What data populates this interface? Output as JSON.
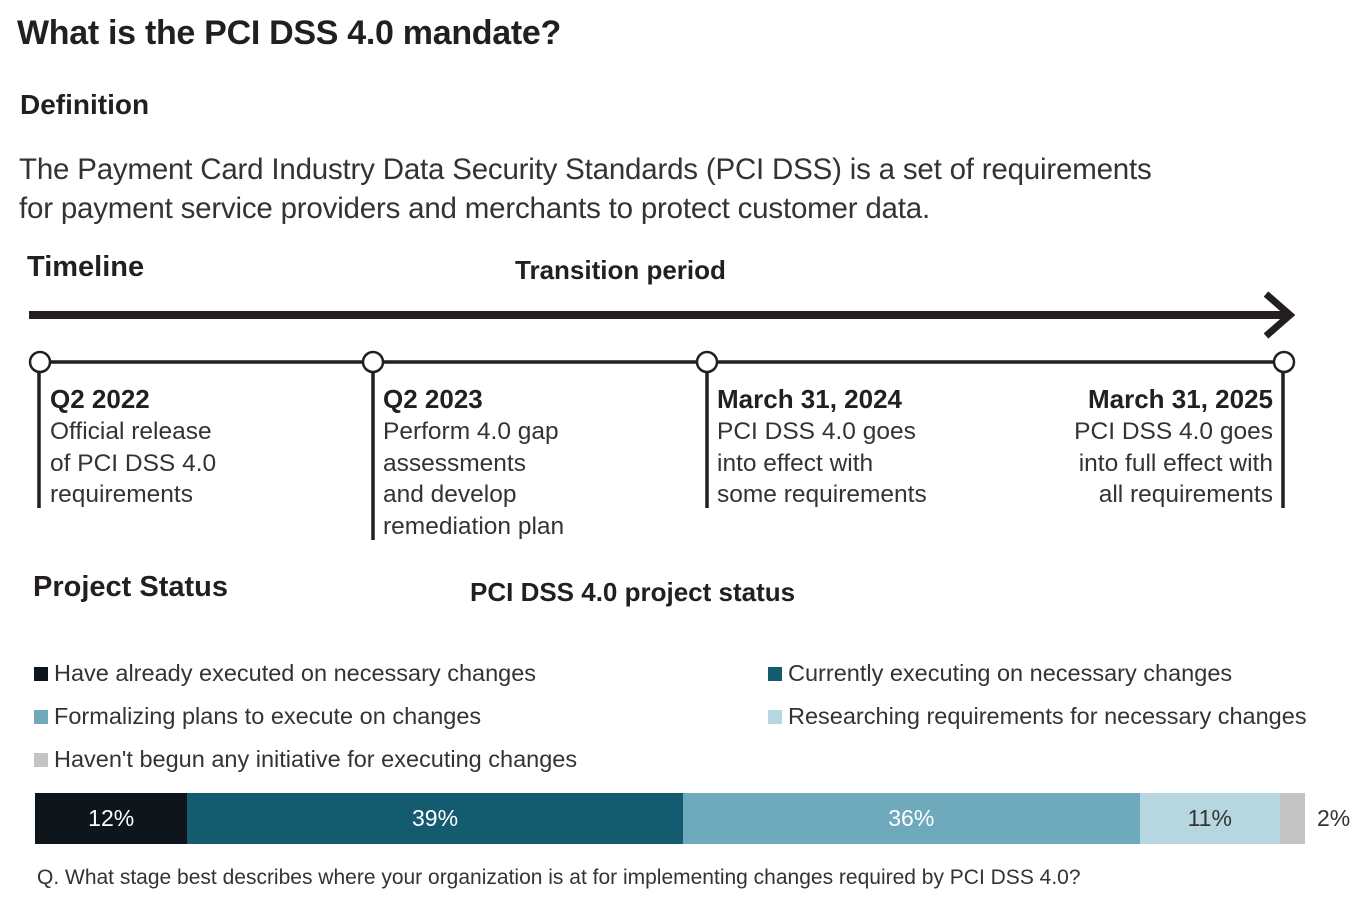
{
  "header": {
    "title": "What is the PCI DSS 4.0 mandate?"
  },
  "definition": {
    "heading": "Definition",
    "lines": [
      "The Payment Card Industry Data Security Standards (PCI DSS) is a set of requirements",
      "for payment service providers and merchants to protect customer data."
    ]
  },
  "timeline": {
    "heading": "Timeline",
    "arrow_label": "Transition period",
    "milestones": [
      {
        "date": "Q2 2022",
        "lines": [
          "Official release",
          "of PCI DSS 4.0",
          "requirements"
        ]
      },
      {
        "date": "Q2 2023",
        "lines": [
          "Perform 4.0 gap",
          "assessments",
          "and develop",
          "remediation plan"
        ]
      },
      {
        "date": "March 31, 2024",
        "lines": [
          "PCI DSS 4.0 goes",
          "into effect with",
          "some requirements"
        ]
      },
      {
        "date": "March 31, 2025",
        "lines": [
          "PCI DSS 4.0 goes",
          "into full effect with",
          "all requirements"
        ]
      }
    ]
  },
  "project_status": {
    "heading": "Project Status"
  },
  "chart_data": {
    "type": "bar",
    "orientation": "horizontal-stacked",
    "title": "PCI DSS 4.0 project status",
    "categories": [
      "Have already executed on necessary changes",
      "Currently executing on necessary changes",
      "Formalizing plans to execute on changes",
      "Researching requirements for necessary changes",
      "Haven't begun any initiative for executing changes"
    ],
    "values": [
      12,
      39,
      36,
      11,
      2
    ],
    "value_labels": [
      "12%",
      "39%",
      "36%",
      "11%",
      "2%"
    ],
    "colors": [
      "#0e161b",
      "#145b70",
      "#6eaabb",
      "#b6d7e0",
      "#c4c4c4"
    ],
    "label_colors": [
      "#ffffff",
      "#ffffff",
      "#ffffff",
      "#333333",
      "#333333"
    ],
    "legend": [
      "top",
      "two-column"
    ],
    "xlim": [
      0,
      100
    ],
    "grid": false,
    "question": "Q. What stage best describes where your organization is at for implementing changes required by PCI DSS 4.0?"
  }
}
